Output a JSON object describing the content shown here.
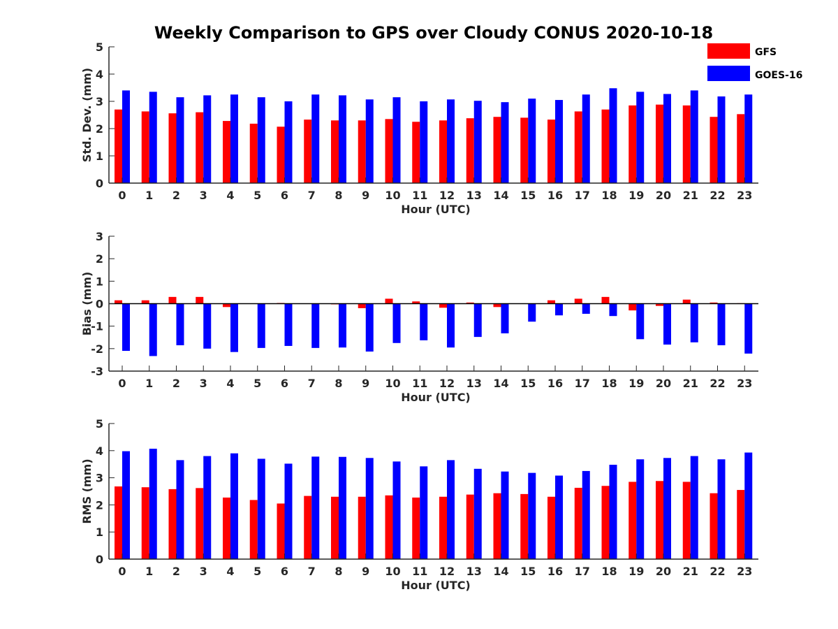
{
  "title": "Weekly Comparison to GPS over Cloudy CONUS 2020-10-18",
  "legend": {
    "placement": "top-right",
    "entries": [
      {
        "name": "GFS",
        "color": "#ff0000"
      },
      {
        "name": "GOES-16",
        "color": "#0000ff"
      }
    ]
  },
  "chart_data": [
    {
      "type": "bar",
      "xlabel": "Hour (UTC)",
      "ylabel": "Std. Dev. (mm)",
      "ylim": [
        0,
        5
      ],
      "yticks": [
        0,
        1,
        2,
        3,
        4,
        5
      ],
      "categories": [
        "0",
        "1",
        "2",
        "3",
        "4",
        "5",
        "6",
        "7",
        "8",
        "9",
        "10",
        "11",
        "12",
        "13",
        "14",
        "15",
        "16",
        "17",
        "18",
        "19",
        "20",
        "21",
        "22",
        "23"
      ],
      "series": [
        {
          "name": "GFS",
          "color": "#ff0000",
          "values": [
            2.7,
            2.63,
            2.56,
            2.6,
            2.28,
            2.18,
            2.07,
            2.33,
            2.3,
            2.3,
            2.35,
            2.25,
            2.3,
            2.38,
            2.43,
            2.4,
            2.33,
            2.63,
            2.7,
            2.85,
            2.88,
            2.85,
            2.43,
            2.53
          ]
        },
        {
          "name": "GOES-16",
          "color": "#0000ff",
          "values": [
            3.4,
            3.35,
            3.15,
            3.22,
            3.25,
            3.15,
            3.0,
            3.25,
            3.22,
            3.07,
            3.15,
            3.0,
            3.07,
            3.02,
            2.97,
            3.1,
            3.05,
            3.25,
            3.48,
            3.35,
            3.27,
            3.4,
            3.18,
            3.25
          ]
        }
      ]
    },
    {
      "type": "bar",
      "xlabel": "Hour (UTC)",
      "ylabel": "Bias (mm)",
      "ylim": [
        -3,
        3
      ],
      "yticks": [
        -3,
        -2,
        -1,
        0,
        1,
        2,
        3
      ],
      "categories": [
        "0",
        "1",
        "2",
        "3",
        "4",
        "5",
        "6",
        "7",
        "8",
        "9",
        "10",
        "11",
        "12",
        "13",
        "14",
        "15",
        "16",
        "17",
        "18",
        "19",
        "20",
        "21",
        "22",
        "23"
      ],
      "series": [
        {
          "name": "GFS",
          "color": "#ff0000",
          "values": [
            0.15,
            0.15,
            0.3,
            0.3,
            -0.15,
            0.0,
            0.03,
            0.0,
            -0.03,
            -0.2,
            0.22,
            0.1,
            -0.18,
            0.05,
            -0.15,
            0.0,
            0.15,
            0.22,
            0.3,
            -0.3,
            -0.1,
            0.18,
            0.05,
            0.02
          ]
        },
        {
          "name": "GOES-16",
          "color": "#0000ff",
          "values": [
            -2.1,
            -2.33,
            -1.85,
            -2.0,
            -2.15,
            -1.97,
            -1.88,
            -1.97,
            -1.95,
            -2.13,
            -1.75,
            -1.63,
            -1.95,
            -1.48,
            -1.32,
            -0.8,
            -0.52,
            -0.45,
            -0.55,
            -1.58,
            -1.82,
            -1.72,
            -1.85,
            -2.22
          ]
        }
      ]
    },
    {
      "type": "bar",
      "xlabel": "Hour (UTC)",
      "ylabel": "RMS (mm)",
      "ylim": [
        0,
        5
      ],
      "yticks": [
        0,
        1,
        2,
        3,
        4,
        5
      ],
      "categories": [
        "0",
        "1",
        "2",
        "3",
        "4",
        "5",
        "6",
        "7",
        "8",
        "9",
        "10",
        "11",
        "12",
        "13",
        "14",
        "15",
        "16",
        "17",
        "18",
        "19",
        "20",
        "21",
        "22",
        "23"
      ],
      "series": [
        {
          "name": "GFS",
          "color": "#ff0000",
          "values": [
            2.68,
            2.65,
            2.58,
            2.62,
            2.27,
            2.18,
            2.05,
            2.33,
            2.3,
            2.3,
            2.35,
            2.27,
            2.3,
            2.38,
            2.43,
            2.4,
            2.3,
            2.63,
            2.7,
            2.85,
            2.88,
            2.85,
            2.43,
            2.55
          ]
        },
        {
          "name": "GOES-16",
          "color": "#0000ff",
          "values": [
            3.98,
            4.07,
            3.65,
            3.8,
            3.9,
            3.7,
            3.52,
            3.78,
            3.77,
            3.73,
            3.6,
            3.42,
            3.65,
            3.33,
            3.23,
            3.18,
            3.08,
            3.25,
            3.48,
            3.68,
            3.73,
            3.8,
            3.68,
            3.93
          ]
        }
      ]
    }
  ]
}
